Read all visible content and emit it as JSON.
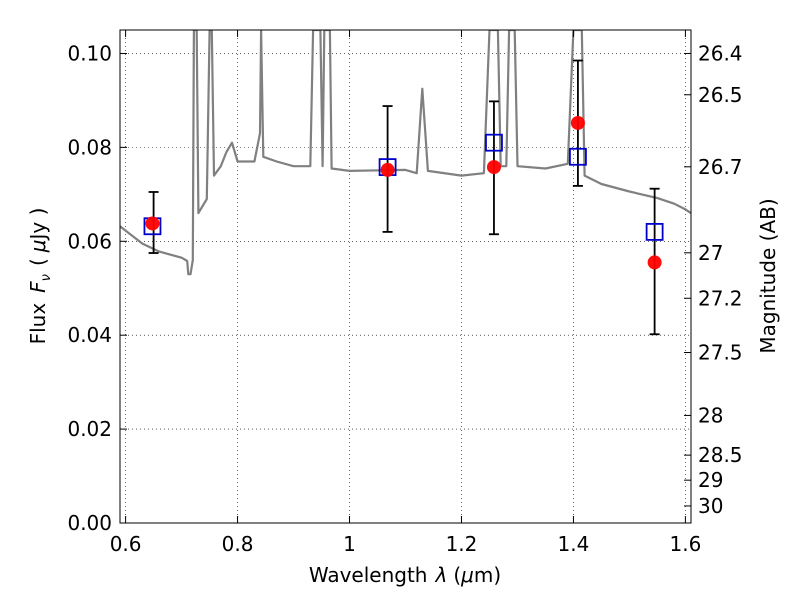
{
  "chart_data": {
    "type": "scatter",
    "xlabel_text": "Wavelength",
    "xlabel_symbol": "λ",
    "xlabel_unit_open": "(",
    "xlabel_unit_mu": "μ",
    "xlabel_unit_rest": "m)",
    "ylabel_text": "Flux",
    "ylabel_F": "F",
    "ylabel_sub": "ν",
    "ylabel_unit_open": "(",
    "ylabel_unit_mu": "μ",
    "ylabel_unit_rest": "Jy )",
    "y2label": "Magnitude (AB)",
    "xlim": [
      0.59,
      1.61
    ],
    "ylim": [
      0.0,
      0.105
    ],
    "grid": true,
    "x_ticks": [
      {
        "value": 0.6,
        "label": "0.6"
      },
      {
        "value": 0.8,
        "label": "0.8"
      },
      {
        "value": 1.0,
        "label": "1"
      },
      {
        "value": 1.2,
        "label": "1.2"
      },
      {
        "value": 1.4,
        "label": "1.4"
      },
      {
        "value": 1.6,
        "label": "1.6"
      }
    ],
    "y_ticks": [
      {
        "value": 0.0,
        "label": "0.00"
      },
      {
        "value": 0.02,
        "label": "0.02"
      },
      {
        "value": 0.04,
        "label": "0.04"
      },
      {
        "value": 0.06,
        "label": "0.06"
      },
      {
        "value": 0.08,
        "label": "0.08"
      },
      {
        "value": 0.1,
        "label": "0.10"
      }
    ],
    "y2_ticks": [
      {
        "value": 26.4,
        "label": "26.4"
      },
      {
        "value": 26.5,
        "label": "26.5"
      },
      {
        "value": 26.7,
        "label": "26.7"
      },
      {
        "value": 27.0,
        "label": "27"
      },
      {
        "value": 27.2,
        "label": "27.2"
      },
      {
        "value": 27.5,
        "label": "27.5"
      },
      {
        "value": 28.0,
        "label": "28"
      },
      {
        "value": 28.5,
        "label": "28.5"
      },
      {
        "value": 29.0,
        "label": "29"
      },
      {
        "value": 30.0,
        "label": "30"
      }
    ],
    "series": [
      {
        "kind": "line",
        "color": "#808080",
        "points": [
          [
            0.59,
            0.0632
          ],
          [
            0.63,
            0.0595
          ],
          [
            0.66,
            0.0578
          ],
          [
            0.7,
            0.0565
          ],
          [
            0.71,
            0.0558
          ],
          [
            0.712,
            0.053
          ],
          [
            0.716,
            0.053
          ],
          [
            0.72,
            0.056
          ],
          [
            0.722,
            0.105
          ],
          [
            0.727,
            0.105
          ],
          [
            0.73,
            0.066
          ],
          [
            0.745,
            0.069
          ],
          [
            0.75,
            0.105
          ],
          [
            0.754,
            0.105
          ],
          [
            0.758,
            0.074
          ],
          [
            0.77,
            0.076
          ],
          [
            0.78,
            0.079
          ],
          [
            0.79,
            0.081
          ],
          [
            0.8,
            0.077
          ],
          [
            0.83,
            0.077
          ],
          [
            0.84,
            0.083
          ],
          [
            0.842,
            0.105
          ],
          [
            0.846,
            0.078
          ],
          [
            0.87,
            0.077
          ],
          [
            0.9,
            0.076
          ],
          [
            0.93,
            0.076
          ],
          [
            0.935,
            0.105
          ],
          [
            0.948,
            0.105
          ],
          [
            0.952,
            0.076
          ],
          [
            0.955,
            0.105
          ],
          [
            0.965,
            0.105
          ],
          [
            0.968,
            0.0755
          ],
          [
            1.0,
            0.075
          ],
          [
            1.1,
            0.0752
          ],
          [
            1.12,
            0.0745
          ],
          [
            1.13,
            0.0925
          ],
          [
            1.14,
            0.075
          ],
          [
            1.2,
            0.074
          ],
          [
            1.24,
            0.0745
          ],
          [
            1.25,
            0.105
          ],
          [
            1.265,
            0.105
          ],
          [
            1.27,
            0.076
          ],
          [
            1.28,
            0.076
          ],
          [
            1.285,
            0.105
          ],
          [
            1.295,
            0.105
          ],
          [
            1.3,
            0.076
          ],
          [
            1.35,
            0.0755
          ],
          [
            1.39,
            0.0765
          ],
          [
            1.4,
            0.105
          ],
          [
            1.415,
            0.105
          ],
          [
            1.42,
            0.074
          ],
          [
            1.45,
            0.0722
          ],
          [
            1.5,
            0.0706
          ],
          [
            1.55,
            0.0692
          ],
          [
            1.58,
            0.068
          ],
          [
            1.6,
            0.0668
          ],
          [
            1.61,
            0.066
          ]
        ]
      },
      {
        "kind": "errorbar",
        "color": "#000000",
        "points": [
          {
            "x": 0.65,
            "low": 0.0575,
            "high": 0.0705
          },
          {
            "x": 1.068,
            "low": 0.062,
            "high": 0.0888
          },
          {
            "x": 1.258,
            "low": 0.0615,
            "high": 0.0898
          },
          {
            "x": 1.408,
            "low": 0.0718,
            "high": 0.0985
          },
          {
            "x": 1.545,
            "low": 0.0402,
            "high": 0.0712
          }
        ]
      },
      {
        "kind": "marker",
        "marker": "open-square",
        "color": "#0000cc",
        "points": [
          [
            0.648,
            0.0632
          ],
          [
            1.068,
            0.0758
          ],
          [
            1.258,
            0.081
          ],
          [
            1.408,
            0.078
          ],
          [
            1.545,
            0.062
          ]
        ]
      },
      {
        "kind": "marker",
        "marker": "filled-circle",
        "color": "#ff0000",
        "points": [
          [
            0.648,
            0.0638
          ],
          [
            1.068,
            0.0752
          ],
          [
            1.258,
            0.0758
          ],
          [
            1.408,
            0.0852
          ],
          [
            1.545,
            0.0555
          ]
        ]
      }
    ]
  }
}
